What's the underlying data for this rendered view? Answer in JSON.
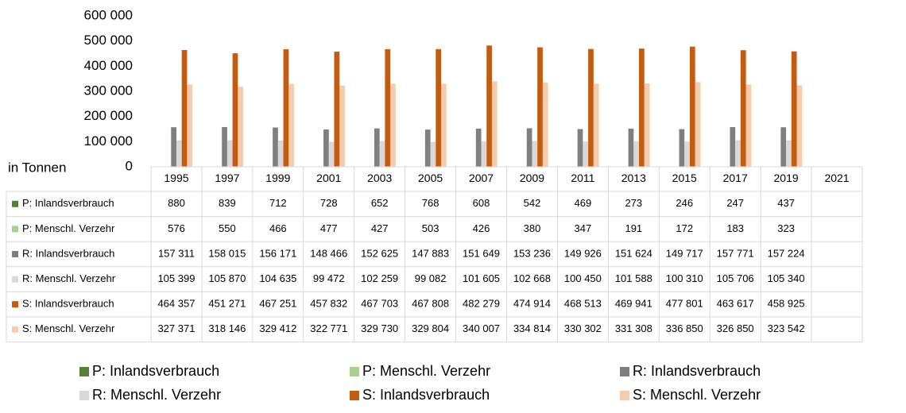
{
  "chart_data": {
    "type": "bar",
    "y_label": "in Tonnen",
    "categories": [
      "1995",
      "1997",
      "1999",
      "2001",
      "2003",
      "2005",
      "2007",
      "2009",
      "2011",
      "2013",
      "2015",
      "2017",
      "2019",
      "2021"
    ],
    "series": [
      {
        "name": "P: Inlandsverbrauch",
        "color": "#548235",
        "values": [
          880,
          839,
          712,
          728,
          652,
          768,
          608,
          542,
          469,
          273,
          246,
          247,
          437,
          null
        ]
      },
      {
        "name": "P: Menschl. Verzehr",
        "color": "#a9d18e",
        "values": [
          576,
          550,
          466,
          477,
          427,
          503,
          426,
          380,
          347,
          191,
          172,
          183,
          323,
          null
        ]
      },
      {
        "name": "R: Inlandsverbrauch",
        "color": "#7f7f7f",
        "values": [
          157311,
          158015,
          156171,
          148466,
          152625,
          147883,
          151649,
          153236,
          149926,
          151624,
          149717,
          157771,
          157224,
          null
        ],
        "value_labels": [
          "157 311",
          "158 015",
          "156 171",
          "148 466",
          "152 625",
          "147 883",
          "151 649",
          "153 236",
          "149 926",
          "151 624",
          "149 717",
          "157 771",
          "157 224",
          null
        ]
      },
      {
        "name": "R: Menschl. Verzehr",
        "color": "#d9d9d9",
        "values": [
          105399,
          105870,
          104635,
          99472,
          102259,
          99082,
          101605,
          102668,
          100450,
          101588,
          100310,
          105706,
          105340,
          null
        ],
        "value_labels": [
          "105 399",
          "105 870",
          "104 635",
          "99 472",
          "102 259",
          "99 082",
          "101 605",
          "102 668",
          "100 450",
          "101 588",
          "100 310",
          "105 706",
          "105 340",
          null
        ]
      },
      {
        "name": "S: Inlandsverbrauch",
        "color": "#c55a11",
        "values": [
          464357,
          451271,
          467251,
          457832,
          467703,
          467808,
          482279,
          474914,
          468513,
          469941,
          477801,
          463617,
          458925,
          null
        ],
        "value_labels": [
          "464 357",
          "451 271",
          "467 251",
          "457 832",
          "467 703",
          "467 808",
          "482 279",
          "474 914",
          "468 513",
          "469 941",
          "477 801",
          "463 617",
          "458 925",
          null
        ]
      },
      {
        "name": "S: Menschl. Verzehr",
        "color": "#f8cbad",
        "values": [
          327371,
          318146,
          329412,
          322771,
          329730,
          329804,
          340007,
          334814,
          330302,
          331308,
          336850,
          326850,
          323542,
          null
        ],
        "value_labels": [
          "327 371",
          "318 146",
          "329 412",
          "322 771",
          "329 730",
          "329 804",
          "340 007",
          "334 814",
          "330 302",
          "331 308",
          "336 850",
          "326 850",
          "323 542",
          null
        ]
      }
    ],
    "ylim": [
      0,
      600000
    ],
    "yticks": [
      0,
      {
        "value": 100000,
        "label": "100 000"
      },
      {
        "value": 200000,
        "label": "200 000"
      },
      {
        "value": 300000,
        "label": "300 000"
      },
      {
        "value": 400000,
        "label": "400 000"
      },
      {
        "value": 500000,
        "label": "500 000"
      },
      {
        "value": 600000,
        "label": "600 000"
      }
    ],
    "legend": "bottom"
  }
}
